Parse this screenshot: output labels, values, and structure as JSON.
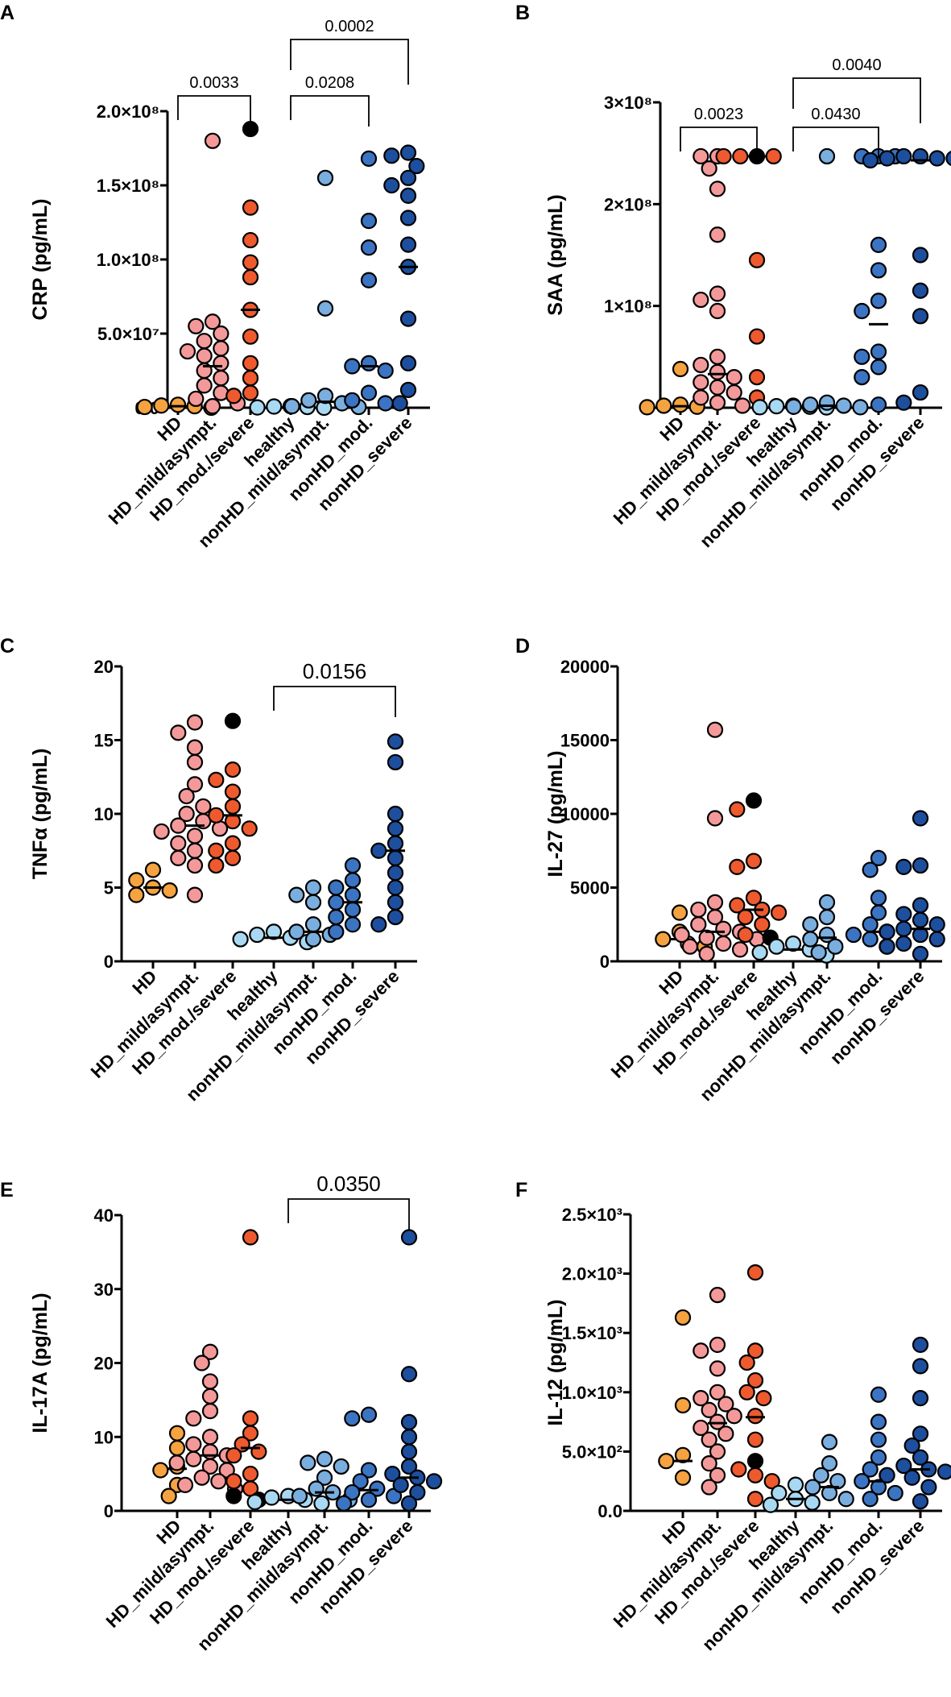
{
  "figure": {
    "categories": [
      "HD",
      "HD_mild/asympt.",
      "HD_mod./severe",
      "healthy",
      "nonHD_mild/asympt.",
      "nonHD_mod.",
      "nonHD_severe"
    ],
    "colors": {
      "HD": "#f4a340",
      "HD_mild/asympt.": "#f49999",
      "HD_mod./severe": "#ee5a2e",
      "healthy": "#a9d9f2",
      "nonHD_mild/asympt.": "#7aaede",
      "nonHD_mod.": "#3b74c2",
      "nonHD_severe": "#1d4f9e",
      "highlight": "#000000"
    }
  },
  "chart_data": [
    {
      "id": "A",
      "type": "scatter",
      "ylabel": "CRP (pg/mL)",
      "ylim": [
        0,
        200000000
      ],
      "yticks": [
        0,
        50000000,
        100000000,
        150000000,
        200000000
      ],
      "yticklabels": [
        "0.0",
        "5.0×10⁷",
        "1.0×10⁸",
        "1.5×10⁸",
        "2.0×10⁸"
      ],
      "series": [
        {
          "name": "HD",
          "values": [
            0,
            500000,
            1000000,
            1500000,
            2000000
          ],
          "median": 1000000
        },
        {
          "name": "HD_mild/asympt.",
          "values": [
            180000000,
            58000000,
            55000000,
            50000000,
            45000000,
            40000000,
            38000000,
            35000000,
            30000000,
            25000000,
            20000000,
            15000000,
            10000000,
            6000000,
            3000000,
            1000000
          ],
          "median": 28000000
        },
        {
          "name": "HD_mod./severe",
          "values": [
            188000000,
            135000000,
            113000000,
            98000000,
            88000000,
            66000000,
            48000000,
            30000000,
            20000000,
            10000000,
            8000000
          ],
          "highlight": [
            188000000,
            188000000
          ],
          "median": 66000000
        },
        {
          "name": "healthy",
          "values": [
            0,
            200000,
            500000,
            800000,
            1000000
          ],
          "median": 300000
        },
        {
          "name": "nonHD_mild/asympt.",
          "values": [
            155000000,
            67000000,
            8000000,
            5000000,
            3000000,
            1000000,
            500000
          ],
          "median": 4000000
        },
        {
          "name": "nonHD_mod.",
          "values": [
            168000000,
            126000000,
            108000000,
            86000000,
            30000000,
            28000000,
            25000000,
            10000000,
            5000000,
            3000000
          ],
          "median": 28000000
        },
        {
          "name": "nonHD_severe",
          "values": [
            172000000,
            170000000,
            163000000,
            155000000,
            150000000,
            143000000,
            128000000,
            110000000,
            95000000,
            60000000,
            30000000,
            12000000,
            3000000
          ],
          "median": 95000000
        }
      ],
      "comparisons": [
        {
          "from": 0,
          "to": 2,
          "label": "0.0033",
          "level": 1
        },
        {
          "from": 3,
          "to": 5,
          "label": "0.0208",
          "level": 1
        },
        {
          "from": 3,
          "to": 6,
          "label": "0.0002",
          "level": 2
        }
      ]
    },
    {
      "id": "B",
      "type": "scatter",
      "ylabel": "SAA (pg/mL)",
      "ylim": [
        0,
        300000000
      ],
      "yticks": [
        0,
        100000000,
        200000000,
        300000000
      ],
      "yticklabels": [
        "0",
        "1×10⁸",
        "2×10⁸",
        "3×10⁸"
      ],
      "series": [
        {
          "name": "HD",
          "values": [
            38000000,
            3000000,
            2000000,
            1000000,
            500000
          ],
          "median": 1500000
        },
        {
          "name": "HD_mild/asympt.",
          "values": [
            247000000,
            247000000,
            235000000,
            215000000,
            170000000,
            112000000,
            106000000,
            95000000,
            50000000,
            42000000,
            35000000,
            30000000,
            25000000,
            20000000,
            15000000,
            10000000,
            5000000,
            2000000
          ],
          "median": 33000000
        },
        {
          "name": "HD_mod./severe",
          "values": [
            247000000,
            247000000,
            247000000,
            247000000,
            145000000,
            70000000,
            30000000,
            10000000
          ],
          "highlight": [
            247000000
          ],
          "median": 247000000
        },
        {
          "name": "healthy",
          "values": [
            2000000,
            1500000,
            1000000,
            500000,
            300000
          ],
          "median": 800000
        },
        {
          "name": "nonHD_mild/asympt.",
          "values": [
            247000000,
            5000000,
            3000000,
            2000000,
            1000000,
            500000
          ],
          "median": 2000000
        },
        {
          "name": "nonHD_mod.",
          "values": [
            247000000,
            247000000,
            247000000,
            160000000,
            135000000,
            105000000,
            95000000,
            55000000,
            50000000,
            40000000,
            30000000,
            3000000
          ],
          "median": 82000000
        },
        {
          "name": "nonHD_severe",
          "values": [
            247000000,
            247000000,
            245000000,
            245000000,
            245000000,
            243000000,
            240000000,
            150000000,
            115000000,
            90000000,
            15000000,
            5000000
          ],
          "median": 243000000
        }
      ],
      "comparisons": [
        {
          "from": 0,
          "to": 2,
          "label": "0.0023",
          "level": 1
        },
        {
          "from": 3,
          "to": 5,
          "label": "0.0430",
          "level": 1
        },
        {
          "from": 3,
          "to": 6,
          "label": "0.0040",
          "level": 2
        }
      ]
    },
    {
      "id": "C",
      "type": "scatter",
      "ylabel": "TNFα (pg/mL)",
      "ylim": [
        0,
        20
      ],
      "yticks": [
        0,
        5,
        10,
        15,
        20
      ],
      "yticklabels": [
        "0",
        "5",
        "10",
        "15",
        "20"
      ],
      "series": [
        {
          "name": "HD",
          "values": [
            6.2,
            5.5,
            5.0,
            4.8,
            4.5
          ],
          "median": 5.0
        },
        {
          "name": "HD_mild/asympt.",
          "values": [
            16.2,
            15.5,
            14.5,
            13.5,
            12.0,
            11.2,
            10.5,
            10.0,
            9.5,
            9.2,
            9.0,
            8.8,
            8.5,
            8.0,
            7.5,
            7.0,
            6.5,
            4.5
          ],
          "median": 9.2
        },
        {
          "name": "HD_mod./severe",
          "values": [
            16.3,
            13.0,
            12.3,
            11.5,
            10.5,
            9.9,
            9.5,
            9.0,
            8.0,
            7.5,
            7.0,
            6.5
          ],
          "highlight": [
            16.3,
            10.0
          ],
          "median": 9.9
        },
        {
          "name": "healthy",
          "values": [
            2.0,
            1.8,
            1.6,
            1.5,
            1.3
          ],
          "median": 1.6
        },
        {
          "name": "nonHD_mild/asympt.",
          "values": [
            5.0,
            4.5,
            4.0,
            2.5,
            2.0,
            1.8,
            1.5
          ],
          "median": 2.0
        },
        {
          "name": "nonHD_mod.",
          "values": [
            6.5,
            5.5,
            5.0,
            4.5,
            4.0,
            3.5,
            3.0,
            2.5,
            2.0
          ],
          "median": 4.0
        },
        {
          "name": "nonHD_severe",
          "values": [
            14.9,
            13.5,
            10.0,
            9.0,
            8.0,
            7.5,
            7.0,
            6.0,
            5.0,
            4.0,
            3.0,
            2.5
          ],
          "median": 7.5
        }
      ],
      "comparisons": [
        {
          "from": 3,
          "to": 6,
          "label": "0.0156",
          "level": 1
        }
      ]
    },
    {
      "id": "D",
      "type": "scatter",
      "ylabel": "IL-27 (pg/mL)",
      "ylim": [
        0,
        20000
      ],
      "yticks": [
        0,
        5000,
        10000,
        15000,
        20000
      ],
      "yticklabels": [
        "0",
        "5000",
        "10000",
        "15000",
        "20000"
      ],
      "series": [
        {
          "name": "HD",
          "values": [
            3300,
            2000,
            1500,
            1200,
            1000
          ],
          "median": 1500
        },
        {
          "name": "HD_mild/asympt.",
          "values": [
            15700,
            9700,
            4000,
            3500,
            3000,
            2500,
            2200,
            2000,
            1800,
            1600,
            1500,
            1200,
            1000,
            800,
            500
          ],
          "median": 2000
        },
        {
          "name": "HD_mod./severe",
          "values": [
            10900,
            10300,
            6800,
            6400,
            4300,
            3800,
            3500,
            3300,
            3000,
            2500,
            1800,
            1600
          ],
          "highlight": [
            10900,
            1600
          ],
          "median": 3500
        },
        {
          "name": "healthy",
          "values": [
            1200,
            1000,
            800,
            600,
            400
          ],
          "median": 800
        },
        {
          "name": "nonHD_mild/asympt.",
          "values": [
            4000,
            3000,
            2500,
            1800,
            1500,
            1000,
            600
          ],
          "median": 1600
        },
        {
          "name": "nonHD_mod.",
          "values": [
            7000,
            6200,
            4300,
            3300,
            2500,
            2000,
            1800,
            1500,
            1000
          ],
          "median": 2000
        },
        {
          "name": "nonHD_severe",
          "values": [
            9700,
            6500,
            6400,
            3800,
            3200,
            2800,
            2500,
            2200,
            2000,
            1800,
            1500,
            1200,
            1000,
            500
          ],
          "median": 2200
        }
      ],
      "comparisons": []
    },
    {
      "id": "E",
      "type": "scatter",
      "ylabel": "IL-17A (pg/mL)",
      "ylim": [
        0,
        40
      ],
      "yticks": [
        0,
        10,
        20,
        30,
        40
      ],
      "yticklabels": [
        "0",
        "10",
        "20",
        "30",
        "40"
      ],
      "series": [
        {
          "name": "HD",
          "values": [
            10.5,
            8.5,
            6.0,
            5.5,
            3.5,
            2.0
          ],
          "median": 5.7
        },
        {
          "name": "HD_mild/asympt.",
          "values": [
            21.5,
            20.0,
            17.5,
            15.5,
            13.5,
            12.5,
            10.0,
            9.0,
            8.0,
            7.5,
            7.0,
            6.5,
            6.0,
            5.5,
            4.5,
            4.0,
            3.5,
            3.0
          ],
          "median": 7.5
        },
        {
          "name": "HD_mod./severe",
          "values": [
            37.0,
            12.5,
            10.5,
            9.0,
            8.0,
            7.5,
            5.0,
            4.0,
            3.0,
            2.0,
            1.5
          ],
          "highlight": [
            2.0,
            1.5
          ],
          "median": 8.5
        },
        {
          "name": "healthy",
          "values": [
            2.0,
            1.8,
            1.5,
            1.2,
            1.0
          ],
          "median": 1.5
        },
        {
          "name": "nonHD_mild/asympt.",
          "values": [
            7.0,
            6.5,
            6.0,
            4.5,
            3.0,
            2.5,
            2.0,
            1.5
          ],
          "median": 2.5
        },
        {
          "name": "nonHD_mod.",
          "values": [
            13.0,
            12.5,
            5.5,
            4.0,
            3.0,
            2.5,
            2.0,
            1.5,
            1.0
          ],
          "median": 2.8
        },
        {
          "name": "nonHD_severe",
          "values": [
            37.0,
            18.5,
            12.0,
            10.0,
            8.0,
            6.0,
            5.0,
            4.5,
            4.0,
            3.5,
            2.5,
            1.0
          ],
          "median": 4.5
        }
      ],
      "comparisons": [
        {
          "from": 3,
          "to": 6,
          "label": "0.0350",
          "level": 1
        }
      ]
    },
    {
      "id": "F",
      "type": "scatter",
      "ylabel": "IL-12 (pg/mL)",
      "ylim": [
        0,
        2500
      ],
      "yticks": [
        0,
        500,
        1000,
        1500,
        2000,
        2500
      ],
      "yticklabels": [
        "0.0",
        "5.0×10²",
        "1.0×10³",
        "1.5×10³",
        "2.0×10³",
        "2.5×10³"
      ],
      "series": [
        {
          "name": "HD",
          "values": [
            1630,
            890,
            470,
            420,
            280
          ],
          "median": 420
        },
        {
          "name": "HD_mild/asympt.",
          "values": [
            1820,
            1400,
            1350,
            1200,
            1000,
            950,
            900,
            850,
            800,
            750,
            700,
            650,
            600,
            500,
            400,
            300,
            200
          ],
          "median": 740
        },
        {
          "name": "HD_mod./severe",
          "values": [
            2010,
            1350,
            1250,
            1100,
            1000,
            950,
            800,
            600,
            420,
            350,
            300,
            250,
            100
          ],
          "highlight": [
            420,
            280
          ],
          "median": 790
        },
        {
          "name": "healthy",
          "values": [
            220,
            150,
            100,
            70,
            50
          ],
          "median": 100
        },
        {
          "name": "nonHD_mild/asympt.",
          "values": [
            580,
            400,
            300,
            250,
            200,
            150,
            100
          ],
          "median": 200
        },
        {
          "name": "nonHD_mod.",
          "values": [
            980,
            750,
            600,
            450,
            350,
            300,
            250,
            200,
            150,
            100
          ],
          "median": 250
        },
        {
          "name": "nonHD_severe",
          "values": [
            1400,
            1220,
            950,
            650,
            550,
            450,
            380,
            350,
            330,
            300,
            280,
            250,
            200,
            80
          ],
          "median": 350
        }
      ],
      "comparisons": []
    }
  ]
}
